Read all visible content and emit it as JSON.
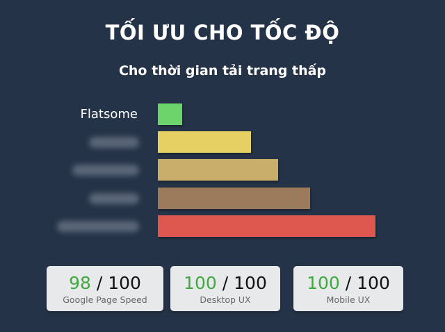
{
  "title": "TỐI ƯU CHO TỐC ĐỘ",
  "subtitle": "Cho thời gian tải trang thấp",
  "chart_data": {
    "type": "bar",
    "orientation": "horizontal",
    "categories": [
      "Flatsome",
      "",
      "",
      "",
      ""
    ],
    "values": [
      35,
      134,
      173,
      219,
      313
    ],
    "colors": [
      "#6dd46b",
      "#e6d064",
      "#c9ae6b",
      "#9c7b5c",
      "#de5850"
    ],
    "label_note_blurred": [
      false,
      true,
      true,
      true,
      true
    ],
    "axes": false,
    "grid": false
  },
  "cards": [
    {
      "score": "98",
      "total": " / 100",
      "label": "Google Page Speed"
    },
    {
      "score": "100",
      "total": " / 100",
      "label": "Desktop UX"
    },
    {
      "score": "100",
      "total": " / 100",
      "label": "Mobile UX"
    }
  ],
  "colors": {
    "background": "#253348",
    "score_green": "#3fa83f",
    "card": "#e8e9eb"
  }
}
